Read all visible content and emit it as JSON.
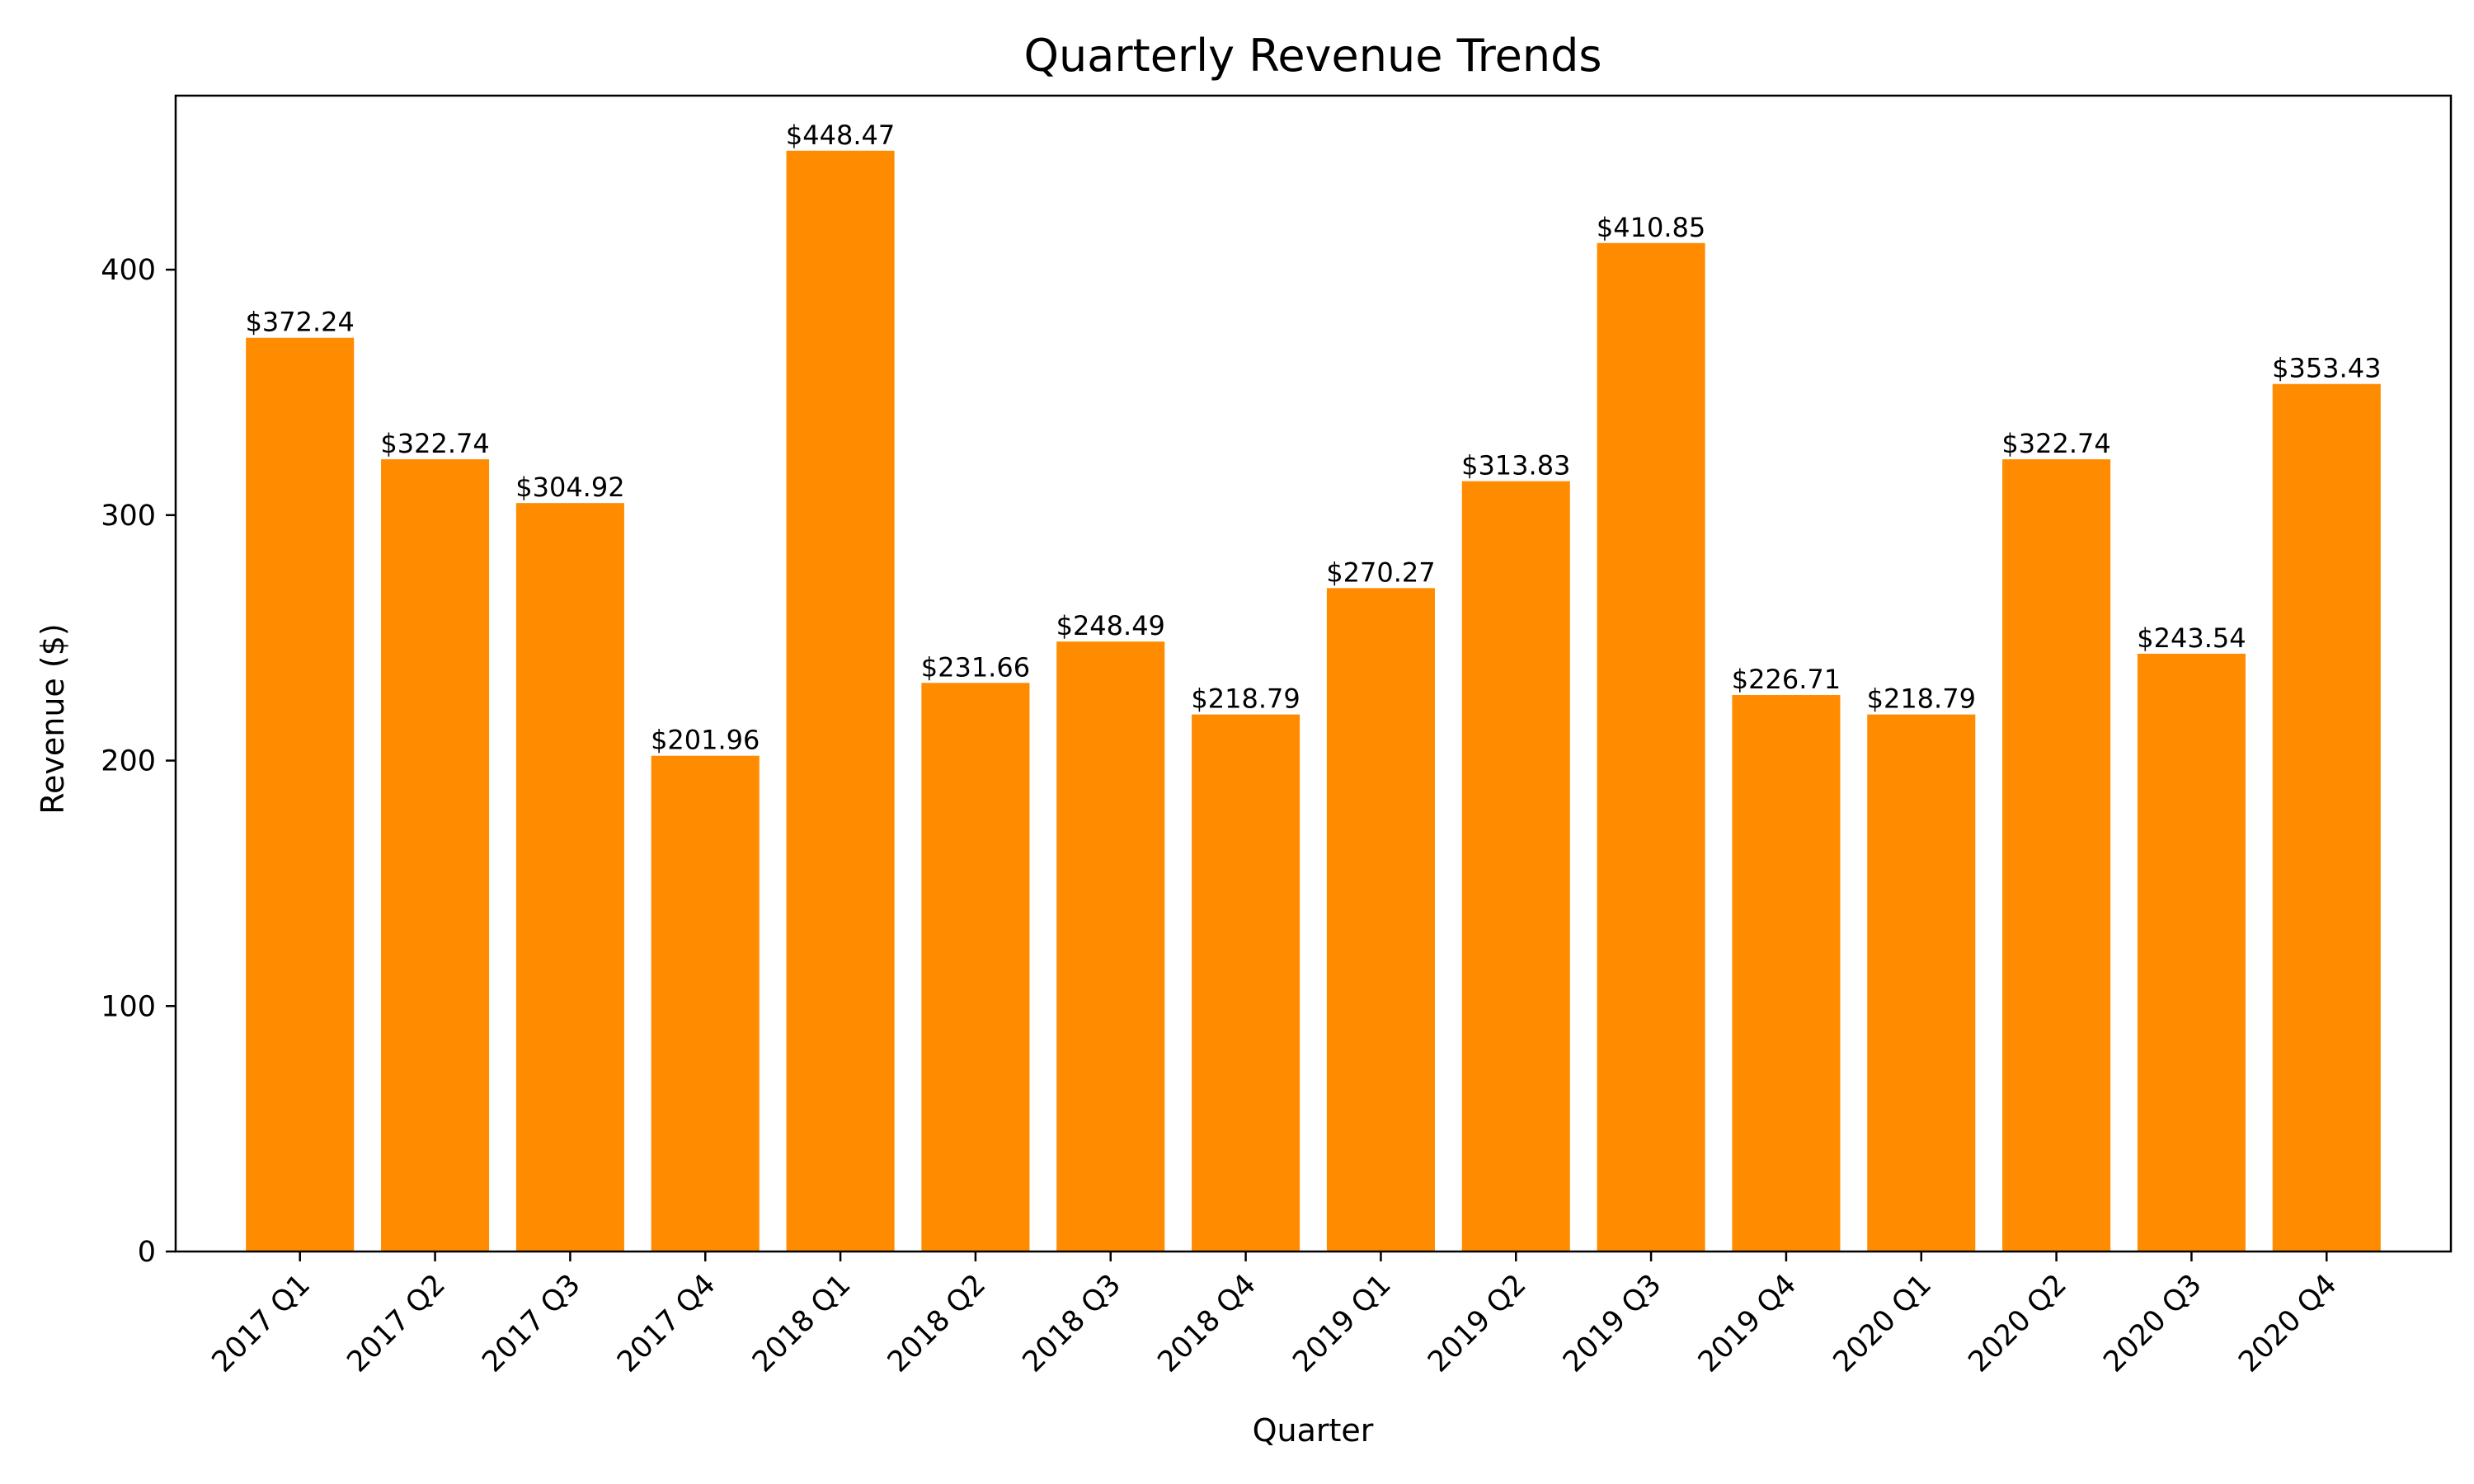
{
  "colors": {
    "bar": "#FF8C00",
    "axis": "#000000",
    "text": "#000000",
    "background": "#FFFFFF"
  },
  "chart_data": {
    "type": "bar",
    "title": "Quarterly Revenue Trends",
    "xlabel": "Quarter",
    "ylabel": "Revenue ($)",
    "categories": [
      "2017 Q1",
      "2017 Q2",
      "2017 Q3",
      "2017 Q4",
      "2018 Q1",
      "2018 Q2",
      "2018 Q3",
      "2018 Q4",
      "2019 Q1",
      "2019 Q2",
      "2019 Q3",
      "2019 Q4",
      "2020 Q1",
      "2020 Q2",
      "2020 Q3",
      "2020 Q4"
    ],
    "values": [
      372.24,
      322.74,
      304.92,
      201.96,
      448.47,
      231.66,
      248.49,
      218.79,
      270.27,
      313.83,
      410.85,
      226.71,
      218.79,
      322.74,
      243.54,
      353.43
    ],
    "value_labels": [
      "$372.24",
      "$322.74",
      "$304.92",
      "$201.96",
      "$448.47",
      "$231.66",
      "$248.49",
      "$218.79",
      "$270.27",
      "$313.83",
      "$410.85",
      "$226.71",
      "$218.79",
      "$322.74",
      "$243.54",
      "$353.43"
    ],
    "yticks": [
      0,
      100,
      200,
      300,
      400
    ],
    "ylim": [
      0,
      470.9
    ],
    "grid": false,
    "legend": "none"
  }
}
